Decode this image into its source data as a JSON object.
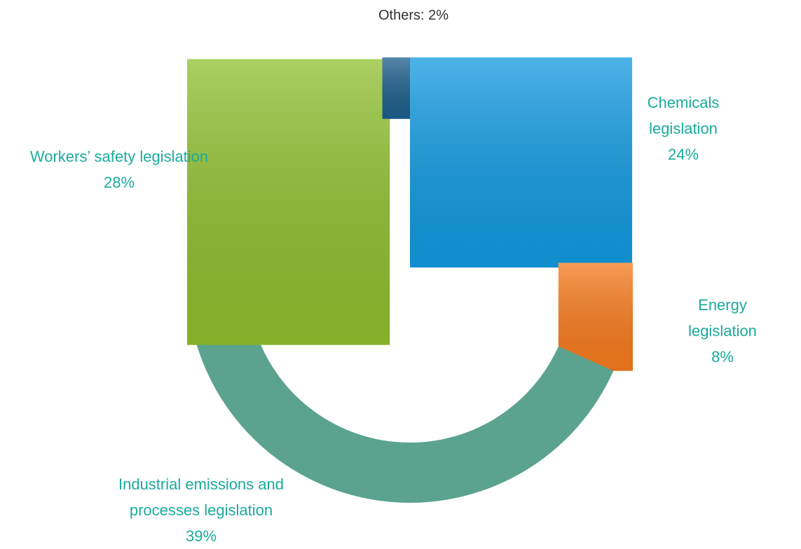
{
  "chart_data": {
    "type": "doughnut",
    "categories": [
      "Chemicals legislation",
      "Energy legislation",
      "Industrial emissions and processes legislation",
      "Workers’ safety legislation",
      "Others"
    ],
    "values": [
      24,
      8,
      39,
      28,
      2
    ],
    "value_labels": [
      "24%",
      "8%",
      "39%",
      "28%",
      "2%"
    ],
    "colors": [
      "#129ae0",
      "#f77b1d",
      "#5ba38f",
      "#8fbf2e",
      "#1d5f8c"
    ]
  }
}
